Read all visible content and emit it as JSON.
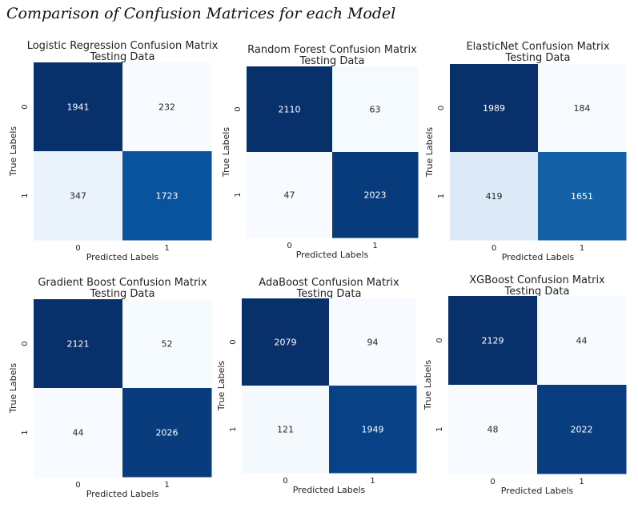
{
  "figure_title": "Comparison of Confusion Matrices for each Model",
  "chart_data": [
    {
      "type": "heatmap",
      "title": "Logistic Regression Confusion Matrix",
      "subtitle": "Testing Data",
      "xlabel": "Predicted Labels",
      "ylabel": "True Labels",
      "x_categories": [
        "0",
        "1"
      ],
      "y_categories": [
        "0",
        "1"
      ],
      "values": [
        [
          1941,
          232
        ],
        [
          347,
          1723
        ]
      ],
      "colormap": "Blues",
      "colorbar": false
    },
    {
      "type": "heatmap",
      "title": "Random Forest Confusion Matrix",
      "subtitle": "Testing Data",
      "xlabel": "Predicted Labels",
      "ylabel": "True Labels",
      "x_categories": [
        "0",
        "1"
      ],
      "y_categories": [
        "0",
        "1"
      ],
      "values": [
        [
          2110,
          63
        ],
        [
          47,
          2023
        ]
      ],
      "colormap": "Blues",
      "colorbar": false
    },
    {
      "type": "heatmap",
      "title": "ElasticNet Confusion Matrix",
      "subtitle": "Testing Data",
      "xlabel": "Predicted Labels",
      "ylabel": "True Labels",
      "x_categories": [
        "0",
        "1"
      ],
      "y_categories": [
        "0",
        "1"
      ],
      "values": [
        [
          1989,
          184
        ],
        [
          419,
          1651
        ]
      ],
      "colormap": "Blues",
      "colorbar": false
    },
    {
      "type": "heatmap",
      "title": "Gradient Boost Confusion Matrix",
      "subtitle": "Testing Data",
      "xlabel": "Predicted Labels",
      "ylabel": "True Labels",
      "x_categories": [
        "0",
        "1"
      ],
      "y_categories": [
        "0",
        "1"
      ],
      "values": [
        [
          2121,
          52
        ],
        [
          44,
          2026
        ]
      ],
      "colormap": "Blues",
      "colorbar": false
    },
    {
      "type": "heatmap",
      "title": "AdaBoost Confusion Matrix",
      "subtitle": "Testing Data",
      "xlabel": "Predicted Labels",
      "ylabel": "True Labels",
      "x_categories": [
        "0",
        "1"
      ],
      "y_categories": [
        "0",
        "1"
      ],
      "values": [
        [
          2079,
          94
        ],
        [
          121,
          1949
        ]
      ],
      "colormap": "Blues",
      "colorbar": false
    },
    {
      "type": "heatmap",
      "title": "XGBoost Confusion Matrix",
      "subtitle": "Testing Data",
      "xlabel": "Predicted Labels",
      "ylabel": "True Labels",
      "x_categories": [
        "0",
        "1"
      ],
      "y_categories": [
        "0",
        "1"
      ],
      "values": [
        [
          2129,
          44
        ],
        [
          48,
          2022
        ]
      ],
      "colormap": "Blues",
      "colorbar": false
    }
  ]
}
